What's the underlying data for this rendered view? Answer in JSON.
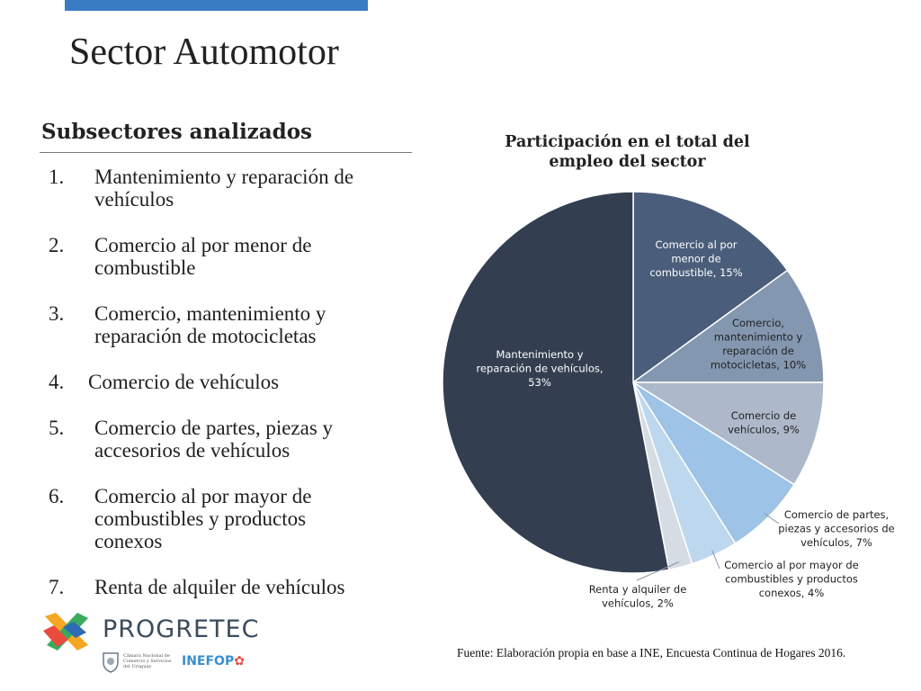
{
  "slide": {
    "title": "Sector Automotor",
    "subheading": "Subsectores analizados",
    "list": [
      {
        "num": "1.",
        "line1": "Mantenimiento y reparación de",
        "line2": "vehículos"
      },
      {
        "num": "2.",
        "line1": "Comercio al por menor de",
        "line2": "combustible"
      },
      {
        "num": "3.",
        "line1": "Comercio, mantenimiento y",
        "line2": "reparación de motocicletas"
      },
      {
        "num": "4.",
        "line1": "Comercio de vehículos",
        "line2": ""
      },
      {
        "num": "5.",
        "line1": "Comercio de partes, piezas y",
        "line2": "accesorios de vehículos"
      },
      {
        "num": "6.",
        "line1": "Comercio al por mayor de",
        "line2": "combustibles y productos",
        "line3": "conexos"
      },
      {
        "num": "7.",
        "line1": "Renta de alquiler de vehículos",
        "line2": ""
      }
    ],
    "source": "Fuente: Elaboración propia en base a INE, Encuesta Continua de Hogares 2016."
  },
  "branding": {
    "progretec": "PROGRETEC",
    "camara": "Cámara Nacional de Comercio y Servicios del Uruguay",
    "inefop": "INEFOP"
  },
  "colors": {
    "accent_bar": "#3a7cc4",
    "slice_mantenimiento": "#333f50",
    "slice_menor_combustible": "#4a5d7a",
    "slice_motocicletas": "#8497b0",
    "slice_vehiculos": "#adb9ca",
    "slice_partes": "#9dc3e6",
    "slice_mayor_combustibles": "#bdd7ee",
    "slice_renta": "#d6dce4"
  },
  "chart_data": {
    "type": "pie",
    "title": "Participación en el total del empleo del sector",
    "categories": [
      "Mantenimiento y reparación de vehículos",
      "Comercio al por menor de combustible",
      "Comercio, mantenimiento y reparación de motocicletas",
      "Comercio de vehículos",
      "Comercio de partes, piezas y accesorios de vehículos",
      "Comercio al por mayor de combustibles y productos conexos",
      "Renta y alquiler de vehículos"
    ],
    "values": [
      53,
      15,
      10,
      9,
      7,
      4,
      2
    ],
    "labels": [
      [
        "Mantenimiento y",
        "reparación de vehículos,",
        "53%"
      ],
      [
        "Comercio al por",
        "menor de",
        "combustible, 15%"
      ],
      [
        "Comercio,",
        "mantenimiento y",
        "reparación de",
        "motocicletas, 10%"
      ],
      [
        "Comercio de",
        "vehículos, 9%"
      ],
      [
        "Comercio de partes,",
        "piezas y accesorios de",
        "vehículos, 7%"
      ],
      [
        "Comercio al por mayor de",
        "combustibles y productos",
        "conexos, 4%"
      ],
      [
        "Renta y alquiler de",
        "vehículos, 2%"
      ]
    ]
  }
}
